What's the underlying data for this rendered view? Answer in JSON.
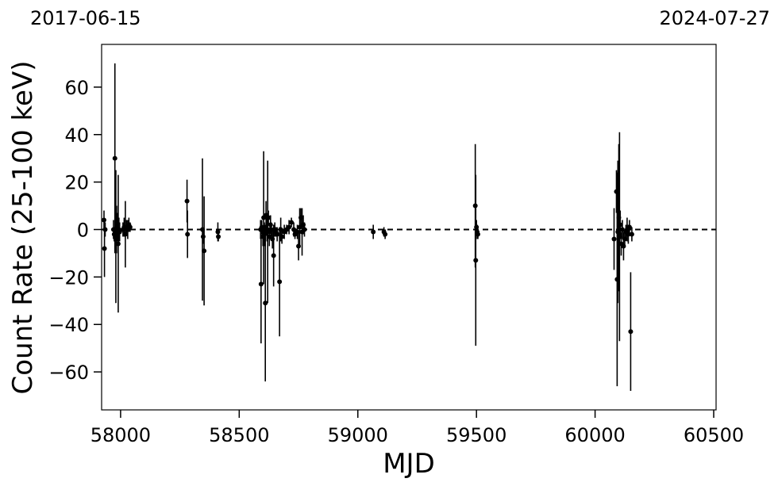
{
  "chart_data": {
    "type": "scatter",
    "title": "",
    "xlabel": "MJD",
    "ylabel": "Count Rate (25-100 keV)",
    "xlim": [
      57920,
      60510
    ],
    "ylim": [
      -76,
      78
    ],
    "xticks": [
      58000,
      58500,
      59000,
      59500,
      60000,
      60500
    ],
    "yticks": [
      -60,
      -40,
      -20,
      0,
      20,
      40,
      60
    ],
    "xtick_labels": [
      "58000",
      "58500",
      "59000",
      "59500",
      "60000",
      "60500"
    ],
    "ytick_labels": [
      "−60",
      "−40",
      "−20",
      "0",
      "20",
      "40",
      "60"
    ],
    "top_left_date": "2017-06-15",
    "top_right_date": "2024-07-27",
    "grid": false,
    "reference_line": {
      "y": 0,
      "style": "dashed"
    },
    "series": [
      {
        "marker_color": "#000000",
        "points": [
          {
            "x": 57930,
            "y": 4,
            "err": 4
          },
          {
            "x": 57932,
            "y": -8,
            "err": 12
          },
          {
            "x": 57935,
            "y": 0,
            "err": 3
          },
          {
            "x": 57970,
            "y": 0,
            "err": 4
          },
          {
            "x": 57973,
            "y": -2,
            "err": 3
          },
          {
            "x": 57976,
            "y": 30,
            "err": 40
          },
          {
            "x": 57978,
            "y": 0,
            "err": 8
          },
          {
            "x": 57980,
            "y": -3,
            "err": 28
          },
          {
            "x": 57983,
            "y": 0,
            "err": 10
          },
          {
            "x": 57986,
            "y": 1,
            "err": 6
          },
          {
            "x": 57990,
            "y": -6,
            "err": 29
          },
          {
            "x": 57993,
            "y": 0,
            "err": 5
          },
          {
            "x": 57996,
            "y": -1,
            "err": 4
          },
          {
            "x": 58010,
            "y": 0,
            "err": 3
          },
          {
            "x": 58015,
            "y": 1,
            "err": 4
          },
          {
            "x": 58020,
            "y": -2,
            "err": 14
          },
          {
            "x": 58025,
            "y": 1,
            "err": 3
          },
          {
            "x": 58030,
            "y": 0,
            "err": 4
          },
          {
            "x": 58035,
            "y": 2,
            "err": 3
          },
          {
            "x": 58040,
            "y": 1,
            "err": 2
          },
          {
            "x": 58280,
            "y": 12,
            "err": 9
          },
          {
            "x": 58282,
            "y": -2,
            "err": 10
          },
          {
            "x": 58345,
            "y": 0,
            "err": 30
          },
          {
            "x": 58348,
            "y": -3,
            "err": 3
          },
          {
            "x": 58352,
            "y": -9,
            "err": 23
          },
          {
            "x": 58410,
            "y": -1,
            "err": 4
          },
          {
            "x": 58412,
            "y": -3,
            "err": 2
          },
          {
            "x": 58590,
            "y": 0,
            "err": 4
          },
          {
            "x": 58592,
            "y": -23,
            "err": 25
          },
          {
            "x": 58595,
            "y": 1,
            "err": 3
          },
          {
            "x": 58600,
            "y": -3,
            "err": 4
          },
          {
            "x": 58603,
            "y": 5,
            "err": 28
          },
          {
            "x": 58606,
            "y": -2,
            "err": 5
          },
          {
            "x": 58610,
            "y": -31,
            "err": 33
          },
          {
            "x": 58613,
            "y": 6,
            "err": 6
          },
          {
            "x": 58617,
            "y": 0,
            "err": 5
          },
          {
            "x": 58620,
            "y": -1,
            "err": 30
          },
          {
            "x": 58623,
            "y": 5,
            "err": 3
          },
          {
            "x": 58627,
            "y": -3,
            "err": 4
          },
          {
            "x": 58632,
            "y": 2,
            "err": 4
          },
          {
            "x": 58635,
            "y": 0,
            "err": 3
          },
          {
            "x": 58640,
            "y": -4,
            "err": 4
          },
          {
            "x": 58645,
            "y": -11,
            "err": 13
          },
          {
            "x": 58650,
            "y": 0,
            "err": 3
          },
          {
            "x": 58655,
            "y": -1,
            "err": 2
          },
          {
            "x": 58660,
            "y": -2,
            "err": 3
          },
          {
            "x": 58670,
            "y": -22,
            "err": 23
          },
          {
            "x": 58675,
            "y": 0,
            "err": 5
          },
          {
            "x": 58680,
            "y": -3,
            "err": 3
          },
          {
            "x": 58690,
            "y": -1,
            "err": 3
          },
          {
            "x": 58700,
            "y": 0,
            "err": 2
          },
          {
            "x": 58710,
            "y": 1,
            "err": 3
          },
          {
            "x": 58720,
            "y": 3,
            "err": 2
          },
          {
            "x": 58730,
            "y": 0,
            "err": 3
          },
          {
            "x": 58735,
            "y": -2,
            "err": 2
          },
          {
            "x": 58745,
            "y": -1,
            "err": 3
          },
          {
            "x": 58750,
            "y": -7,
            "err": 6
          },
          {
            "x": 58755,
            "y": 1,
            "err": 8
          },
          {
            "x": 58760,
            "y": 5,
            "err": 4
          },
          {
            "x": 58765,
            "y": -1,
            "err": 10
          },
          {
            "x": 58770,
            "y": 2,
            "err": 4
          },
          {
            "x": 58775,
            "y": 0,
            "err": 3
          },
          {
            "x": 59065,
            "y": -1,
            "err": 3
          },
          {
            "x": 59110,
            "y": -1,
            "err": 2
          },
          {
            "x": 59115,
            "y": -2,
            "err": 2
          },
          {
            "x": 59495,
            "y": 10,
            "err": 26
          },
          {
            "x": 59497,
            "y": -13,
            "err": 36
          },
          {
            "x": 59500,
            "y": 1,
            "err": 3
          },
          {
            "x": 59503,
            "y": -1,
            "err": 3
          },
          {
            "x": 59506,
            "y": -2,
            "err": 2
          },
          {
            "x": 60080,
            "y": -4,
            "err": 13
          },
          {
            "x": 60090,
            "y": 16,
            "err": 9
          },
          {
            "x": 60093,
            "y": -21,
            "err": 45
          },
          {
            "x": 60096,
            "y": -1,
            "err": 30
          },
          {
            "x": 60100,
            "y": 5,
            "err": 31
          },
          {
            "x": 60103,
            "y": -3,
            "err": 44
          },
          {
            "x": 60106,
            "y": 2,
            "err": 6
          },
          {
            "x": 60110,
            "y": -6,
            "err": 5
          },
          {
            "x": 60115,
            "y": 0,
            "err": 4
          },
          {
            "x": 60120,
            "y": -7,
            "err": 6
          },
          {
            "x": 60125,
            "y": -4,
            "err": 3
          },
          {
            "x": 60130,
            "y": -1,
            "err": 3
          },
          {
            "x": 60135,
            "y": 0,
            "err": 5
          },
          {
            "x": 60140,
            "y": -2,
            "err": 4
          },
          {
            "x": 60145,
            "y": 1,
            "err": 3
          },
          {
            "x": 60150,
            "y": -43,
            "err": 25
          },
          {
            "x": 60155,
            "y": -2,
            "err": 3
          }
        ]
      }
    ]
  }
}
